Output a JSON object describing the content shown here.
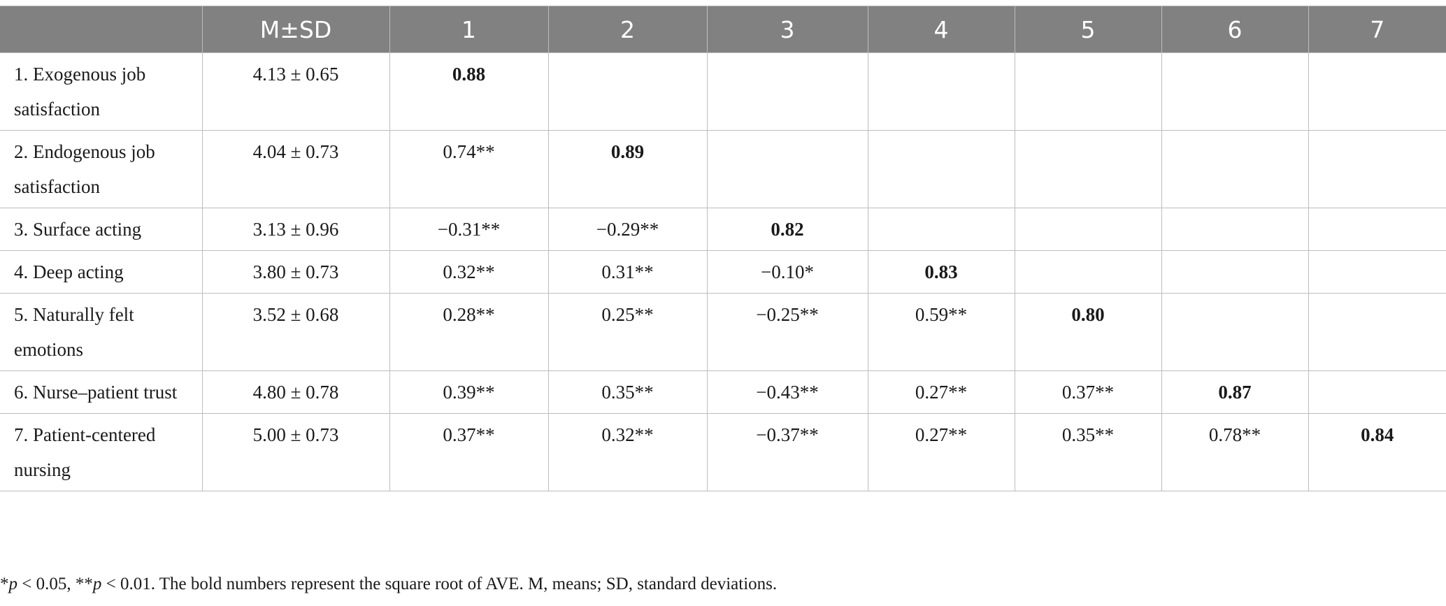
{
  "table": {
    "headers": [
      "",
      "M±SD",
      "1",
      "2",
      "3",
      "4",
      "5",
      "6",
      "7"
    ],
    "rows": [
      {
        "label": "1. Exogenous job satisfaction",
        "msd": "4.13 ± 0.65",
        "cells": [
          "0.88",
          "",
          "",
          "",
          "",
          "",
          ""
        ],
        "diag": 0
      },
      {
        "label": "2. Endogenous job satisfaction",
        "msd": "4.04 ± 0.73",
        "cells": [
          "0.74**",
          "0.89",
          "",
          "",
          "",
          "",
          ""
        ],
        "diag": 1
      },
      {
        "label": "3. Surface acting",
        "msd": "3.13 ± 0.96",
        "cells": [
          "−0.31**",
          "−0.29**",
          "0.82",
          "",
          "",
          "",
          ""
        ],
        "diag": 2
      },
      {
        "label": "4. Deep acting",
        "msd": "3.80 ± 0.73",
        "cells": [
          "0.32**",
          "0.31**",
          "−0.10*",
          "0.83",
          "",
          "",
          ""
        ],
        "diag": 3
      },
      {
        "label": "5. Naturally felt emotions",
        "msd": "3.52 ± 0.68",
        "cells": [
          "0.28**",
          "0.25**",
          "−0.25**",
          "0.59**",
          "0.80",
          "",
          ""
        ],
        "diag": 4
      },
      {
        "label": "6. Nurse–patient trust",
        "msd": "4.80 ± 0.78",
        "cells": [
          "0.39**",
          "0.35**",
          "−0.43**",
          "0.27**",
          "0.37**",
          "0.87",
          ""
        ],
        "diag": 5
      },
      {
        "label": "7. Patient-centered nursing",
        "msd": "5.00 ± 0.73",
        "cells": [
          "0.37**",
          "0.32**",
          "−0.37**",
          "0.27**",
          "0.35**",
          "0.78**",
          "0.84"
        ],
        "diag": 6
      }
    ]
  },
  "footnote": {
    "star1": "*",
    "p1": "p",
    "t1": " < 0.05, **",
    "p2": "p",
    "t2": " < 0.01. The bold numbers represent the square root of AVE. M, means; SD, standard deviations."
  }
}
